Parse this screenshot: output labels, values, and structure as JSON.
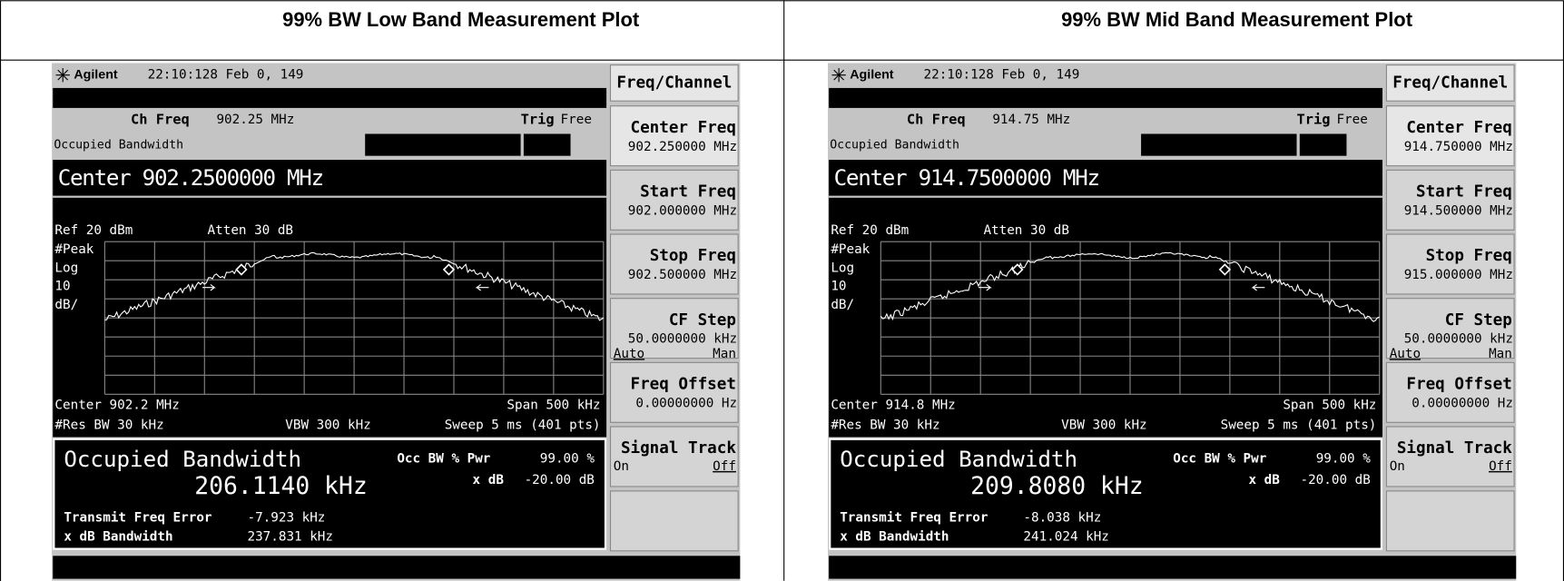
{
  "table": {
    "headers": [
      "99% BW Low Band Measurement Plot",
      "99% BW Mid Band Measurement Plot"
    ]
  },
  "screens": [
    {
      "brand": "Agilent",
      "timestamp": "22:10:128  Feb 0, 149",
      "ch_freq_label": "Ch Freq",
      "ch_freq": "902.25 MHz",
      "trig_label": "Trig",
      "trig": "Free",
      "mode": "Occupied Bandwidth",
      "banner": "Center 902.2500000 MHz",
      "ref": "Ref 20 dBm",
      "atten": "Atten 30 dB",
      "scale_labels": [
        "#Peak",
        "Log",
        "10",
        "dB/"
      ],
      "center": "Center 902.2 MHz",
      "span": "Span 500 kHz",
      "res_bw": "#Res BW 30 kHz",
      "vbw": "VBW 300 kHz",
      "sweep": "Sweep 5 ms (401 pts)",
      "result_title": "Occupied Bandwidth",
      "occ_bw": "206.1140 kHz",
      "occ_pwr_label": "Occ BW % Pwr",
      "occ_pwr": "99.00 %",
      "xdb_label": "x dB",
      "xdb": "-20.00 dB",
      "tfe_label": "Transmit Freq Error",
      "tfe": "-7.923 kHz",
      "xdb_bw_label": "x dB Bandwidth",
      "xdb_bw": "237.831 kHz",
      "menu": {
        "title": "Freq/Channel",
        "keys": [
          {
            "label": "Center Freq",
            "value": "902.250000 MHz"
          },
          {
            "label": "Start Freq",
            "value": "902.000000 MHz"
          },
          {
            "label": "Stop Freq",
            "value": "902.500000 MHz"
          },
          {
            "label": "CF Step",
            "value": "50.0000000 kHz",
            "options": [
              "Auto",
              "Man"
            ],
            "selected": 0
          },
          {
            "label": "Freq Offset",
            "value": "0.00000000  Hz"
          },
          {
            "label": "Signal Track",
            "options": [
              "On",
              "Off"
            ],
            "selected": 1
          }
        ]
      }
    },
    {
      "brand": "Agilent",
      "timestamp": "22:10:128  Feb 0, 149",
      "ch_freq_label": "Ch Freq",
      "ch_freq": "914.75 MHz",
      "trig_label": "Trig",
      "trig": "Free",
      "mode": "Occupied Bandwidth",
      "banner": "Center 914.7500000 MHz",
      "ref": "Ref 20 dBm",
      "atten": "Atten 30 dB",
      "scale_labels": [
        "#Peak",
        "Log",
        "10",
        "dB/"
      ],
      "center": "Center 914.8 MHz",
      "span": "Span 500 kHz",
      "res_bw": "#Res BW 30 kHz",
      "vbw": "VBW 300 kHz",
      "sweep": "Sweep 5 ms (401 pts)",
      "result_title": "Occupied Bandwidth",
      "occ_bw": "209.8080 kHz",
      "occ_pwr_label": "Occ BW % Pwr",
      "occ_pwr": "99.00 %",
      "xdb_label": "x dB",
      "xdb": "-20.00 dB",
      "tfe_label": "Transmit Freq Error",
      "tfe": "-8.038 kHz",
      "xdb_bw_label": "x dB Bandwidth",
      "xdb_bw": "241.024 kHz",
      "menu": {
        "title": "Freq/Channel",
        "keys": [
          {
            "label": "Center Freq",
            "value": "914.750000 MHz"
          },
          {
            "label": "Start Freq",
            "value": "914.500000 MHz"
          },
          {
            "label": "Stop Freq",
            "value": "915.000000 MHz"
          },
          {
            "label": "CF Step",
            "value": "50.0000000 kHz",
            "options": [
              "Auto",
              "Man"
            ],
            "selected": 0
          },
          {
            "label": "Freq Offset",
            "value": "0.00000000  Hz"
          },
          {
            "label": "Signal Track",
            "options": [
              "On",
              "Off"
            ],
            "selected": 1
          }
        ]
      }
    }
  ]
}
